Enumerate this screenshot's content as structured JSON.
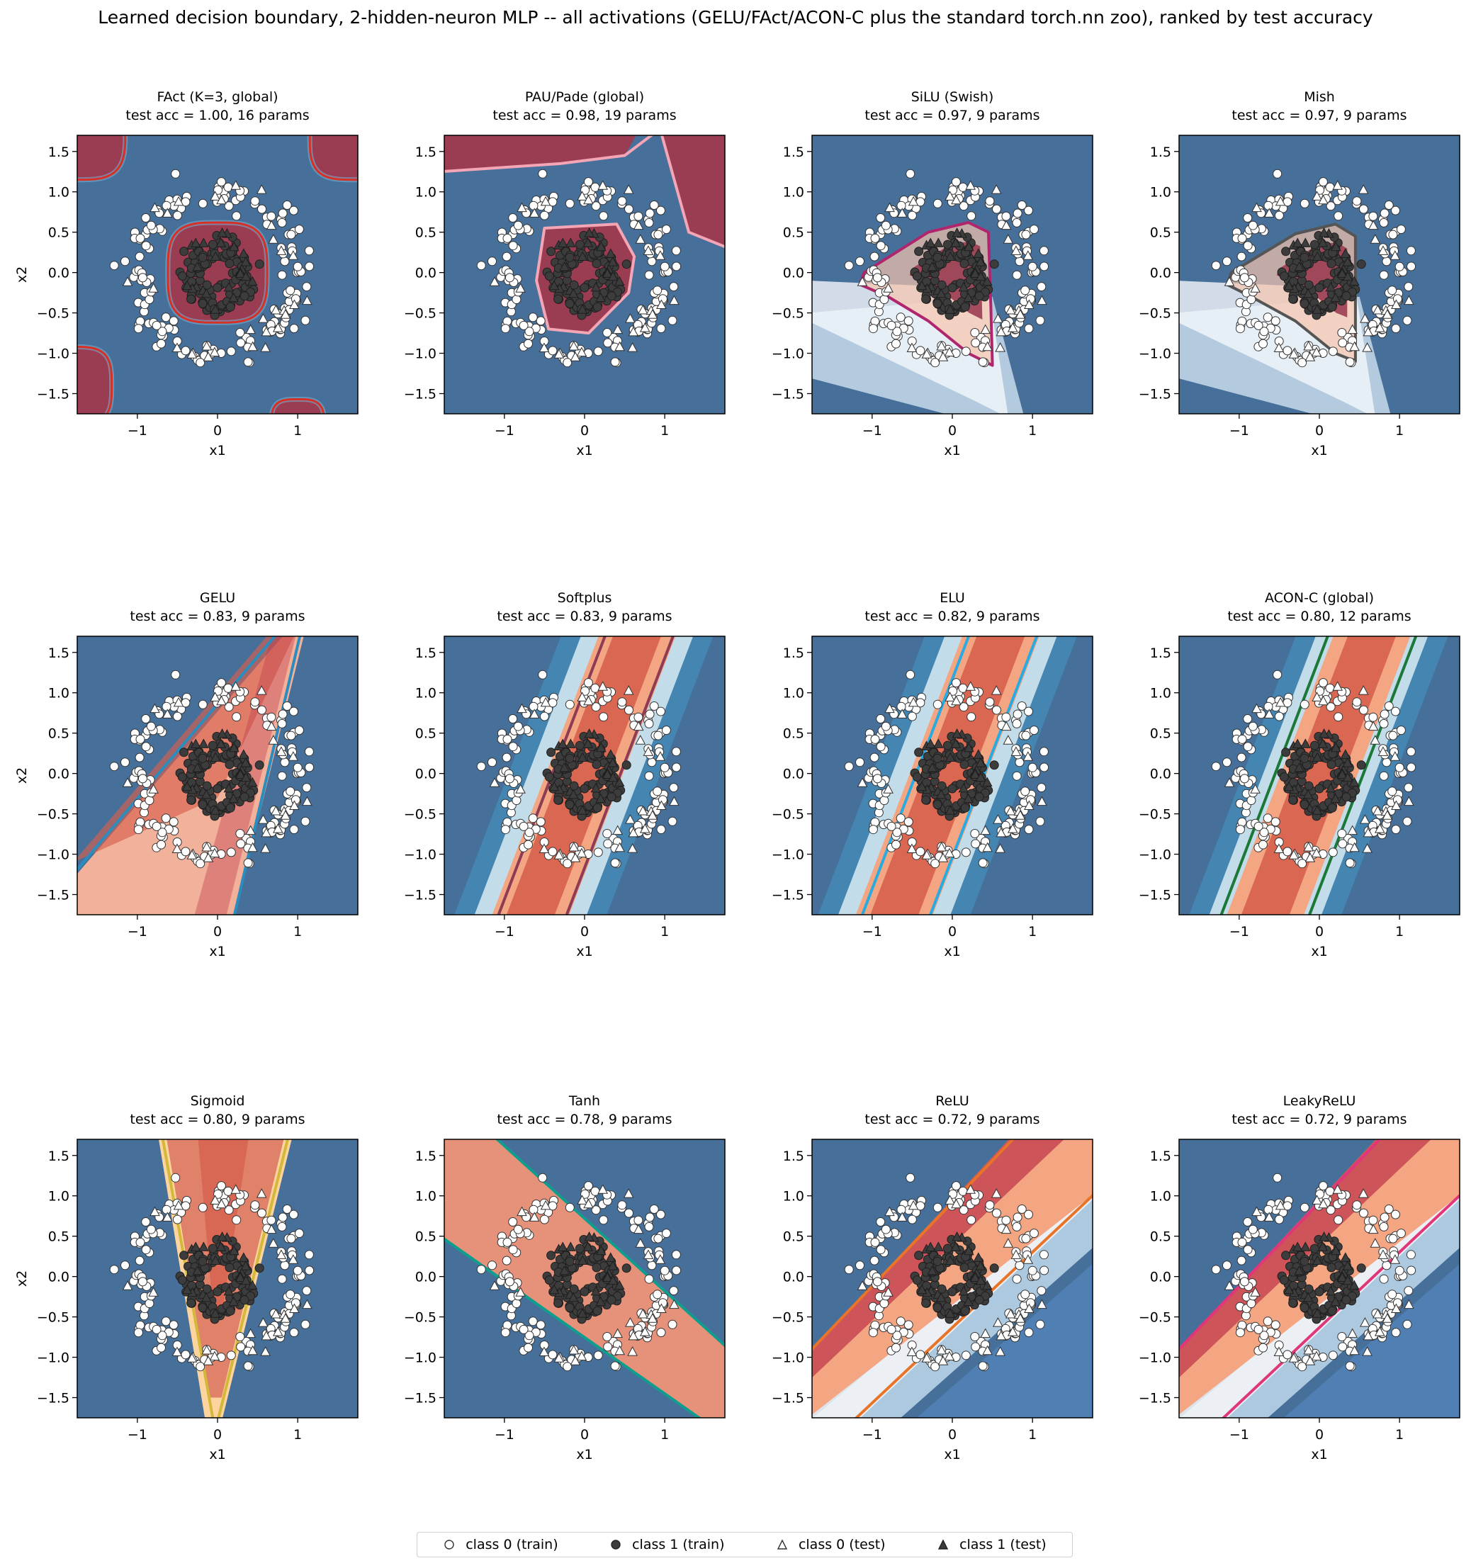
{
  "figure": {
    "title": "Learned decision boundary, 2-hidden-neuron MLP -- all activations (GELU/FAct/ACON-C plus the standard torch.nn zoo), ranked by test accuracy"
  },
  "legend": {
    "items": [
      {
        "label": "class 0 (train)",
        "marker": "circle",
        "fill": "#ffffff"
      },
      {
        "label": "class 1 (train)",
        "marker": "circle",
        "fill": "#3c3c3c"
      },
      {
        "label": "class 0 (test)",
        "marker": "triangle",
        "fill": "#ffffff"
      },
      {
        "label": "class 1 (test)",
        "marker": "triangle",
        "fill": "#3c3c3c"
      }
    ]
  },
  "chart_data": {
    "type": "scatter",
    "xlabel": "x1",
    "ylabel": "x2",
    "xlim": [
      -1.75,
      1.75
    ],
    "ylim": [
      -1.75,
      1.7
    ],
    "xticks": [
      -1,
      0,
      1
    ],
    "yticks": [
      -1.5,
      -1.0,
      -0.5,
      0.0,
      0.5,
      1.0,
      1.5
    ],
    "ytick_labels": [
      "−1.5",
      "−1.0",
      "−0.5",
      "0.0",
      "0.5",
      "1.0",
      "1.5"
    ],
    "xtick_labels": [
      "−1",
      "0",
      "1"
    ],
    "colors": {
      "class0": "#ffffff",
      "class1": "#3c3c3c",
      "bg_low": "#46709a",
      "bg_high": "#9b3d52"
    },
    "datasets": {
      "class0": {
        "shape": "ring",
        "radius": 1.0,
        "noise": 0.1,
        "n_train": 150,
        "n_test": 30
      },
      "class1": {
        "shape": "disk",
        "radius": 0.5,
        "n_train": 120,
        "n_test": 25
      }
    },
    "panels": [
      {
        "title": "FAct (K=3, global)",
        "subtitle": "test acc = 1.00, 16 params",
        "boundary_kind": "loop",
        "boundary_color": "#d73027"
      },
      {
        "title": "PAU/Pade (global)",
        "subtitle": "test acc = 0.98, 19 params",
        "boundary_kind": "loop",
        "boundary_color": "#f4a6b7"
      },
      {
        "title": "SiLU (Swish)",
        "subtitle": "test acc = 0.97, 9 params",
        "boundary_kind": "loop",
        "boundary_color": "#b0266e"
      },
      {
        "title": "Mish",
        "subtitle": "test acc = 0.97, 9 params",
        "boundary_kind": "loop",
        "boundary_color": "#555555"
      },
      {
        "title": "GELU",
        "subtitle": "test acc = 0.83, 9 params",
        "boundary_kind": "wedge",
        "boundary_color": "#2b8cbe"
      },
      {
        "title": "Softplus",
        "subtitle": "test acc = 0.83, 9 params",
        "boundary_kind": "band",
        "boundary_color": "#8e3b55"
      },
      {
        "title": "ELU",
        "subtitle": "test acc = 0.82, 9 params",
        "boundary_kind": "band",
        "boundary_color": "#29abe2"
      },
      {
        "title": "ACON-C (global)",
        "subtitle": "test acc = 0.80, 12 params",
        "boundary_kind": "band",
        "boundary_color": "#1b7837"
      },
      {
        "title": "Sigmoid",
        "subtitle": "test acc = 0.80, 9 params",
        "boundary_kind": "wedge",
        "boundary_color": "#d4b83a"
      },
      {
        "title": "Tanh",
        "subtitle": "test acc = 0.78, 9 params",
        "boundary_kind": "band",
        "boundary_color": "#0f9e8e"
      },
      {
        "title": "ReLU",
        "subtitle": "test acc = 0.72, 9 params",
        "boundary_kind": "band",
        "boundary_color": "#e8742a"
      },
      {
        "title": "LeakyReLU",
        "subtitle": "test acc = 0.72, 9 params",
        "boundary_kind": "band",
        "boundary_color": "#e0367a"
      }
    ]
  }
}
